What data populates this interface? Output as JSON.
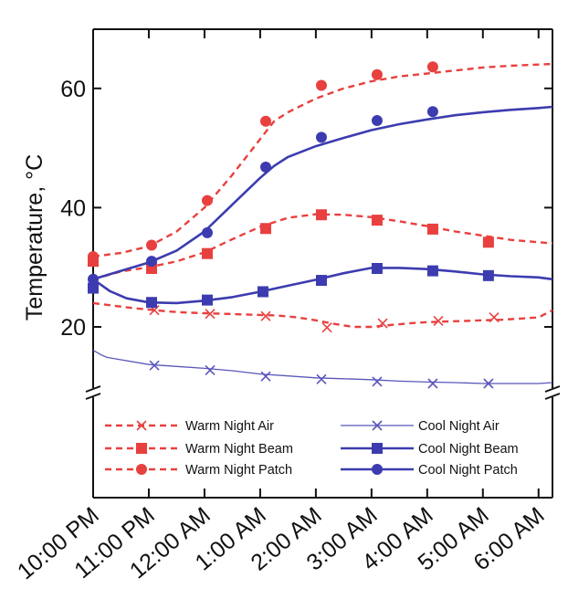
{
  "chart_data": {
    "type": "line",
    "ylabel": "Temperature, °C",
    "xlabel": "",
    "y_ticks": [
      "20",
      "40",
      "60"
    ],
    "x_ticks": [
      "10:00 PM",
      "11:00 PM",
      "12:00 AM",
      "1:00 AM",
      "2:00 AM",
      "3:00 AM",
      "4:00 AM",
      "5:00 AM",
      "6:00 AM"
    ],
    "y_axis_break": true,
    "grid": false,
    "legend_position": "bottom (inside plot, below axis break)",
    "series": [
      {
        "name": "Warm Night Air",
        "color": "#e8403f",
        "line": "dashed",
        "marker": "x",
        "x": [
          22.0,
          22.33,
          22.67,
          23.0,
          23.33,
          23.67,
          24.0,
          24.33,
          24.67,
          25.0,
          25.33,
          25.67,
          26.0,
          26.33,
          26.67,
          27.0,
          27.33,
          27.67,
          28.0,
          28.33,
          28.67,
          29.0,
          29.33,
          29.67,
          30.0,
          30.25
        ],
        "y": [
          24.0,
          23.6,
          23.2,
          22.9,
          22.6,
          22.4,
          22.3,
          22.2,
          22.1,
          22.0,
          21.9,
          21.6,
          21.1,
          20.5,
          20.0,
          20.0,
          20.3,
          20.6,
          20.8,
          20.9,
          21.0,
          21.1,
          21.2,
          21.4,
          21.6,
          22.8
        ],
        "markers": [
          [
            23.1,
            22.8
          ],
          [
            24.1,
            22.2
          ],
          [
            25.1,
            21.8
          ],
          [
            26.2,
            19.9
          ],
          [
            27.2,
            20.6
          ],
          [
            28.2,
            21.0
          ],
          [
            29.2,
            21.6
          ]
        ]
      },
      {
        "name": "Warm Night Beam",
        "color": "#e8403f",
        "line": "dashed",
        "marker": "square",
        "x": [
          22.0,
          22.5,
          23.0,
          23.5,
          24.0,
          24.5,
          25.0,
          25.5,
          26.0,
          26.5,
          27.0,
          27.5,
          28.0,
          28.5,
          29.0,
          29.5,
          30.0,
          30.25
        ],
        "y": [
          28.0,
          29.3,
          30.0,
          31.0,
          32.5,
          34.7,
          36.8,
          38.3,
          38.9,
          38.8,
          38.4,
          37.7,
          36.9,
          36.0,
          35.3,
          34.6,
          34.2,
          34.0
        ],
        "markers": [
          [
            22.0,
            31.0
          ],
          [
            23.05,
            29.8
          ],
          [
            24.05,
            32.3
          ],
          [
            25.1,
            36.5
          ],
          [
            26.1,
            38.8
          ],
          [
            27.1,
            37.9
          ],
          [
            28.1,
            36.4
          ],
          [
            29.1,
            34.2
          ]
        ]
      },
      {
        "name": "Warm Night Patch",
        "color": "#e8403f",
        "line": "dashed",
        "marker": "circle",
        "x": [
          22.0,
          22.5,
          23.0,
          23.5,
          24.0,
          24.5,
          25.0,
          25.25,
          25.5,
          26.0,
          26.5,
          27.0,
          27.5,
          28.0,
          28.5,
          29.0,
          29.5,
          30.0,
          30.25
        ],
        "y": [
          31.8,
          32.4,
          33.5,
          36.0,
          40.0,
          45.5,
          51.5,
          54.5,
          56.0,
          58.3,
          60.0,
          61.2,
          62.0,
          62.5,
          63.0,
          63.5,
          63.8,
          64.0,
          64.1
        ],
        "markers": [
          [
            22.0,
            31.8
          ],
          [
            23.05,
            33.7
          ],
          [
            24.05,
            41.2
          ],
          [
            25.1,
            54.5
          ],
          [
            26.1,
            60.5
          ],
          [
            27.1,
            62.3
          ],
          [
            28.1,
            63.6
          ]
        ]
      },
      {
        "name": "Cool Night Air",
        "color": "#5a56bb",
        "line": "thin-solid",
        "marker": "x",
        "x": [
          22.0,
          22.15,
          22.25,
          22.5,
          23.0,
          23.5,
          24.0,
          24.5,
          25.0,
          25.5,
          26.0,
          26.5,
          27.0,
          27.5,
          28.0,
          28.5,
          29.0,
          29.5,
          30.0,
          30.25
        ],
        "y": [
          17.0,
          16.0,
          15.5,
          15.0,
          14.0,
          13.6,
          13.2,
          12.7,
          12.0,
          11.6,
          11.2,
          11.0,
          10.8,
          10.5,
          10.3,
          10.2,
          10.0,
          10.0,
          10.0,
          10.2
        ],
        "markers": [
          [
            23.1,
            13.8
          ],
          [
            24.1,
            12.8
          ],
          [
            25.1,
            11.5
          ],
          [
            26.1,
            10.9
          ],
          [
            27.1,
            10.4
          ],
          [
            28.1,
            10.0
          ],
          [
            29.1,
            10.0
          ]
        ]
      },
      {
        "name": "Cool Night Beam",
        "color": "#3c3cb0",
        "line": "solid",
        "marker": "square",
        "x": [
          22.0,
          22.3,
          22.6,
          23.0,
          23.5,
          24.0,
          24.5,
          25.0,
          25.5,
          26.0,
          26.5,
          27.0,
          27.5,
          28.0,
          28.5,
          29.0,
          29.5,
          30.0,
          30.25
        ],
        "y": [
          28.0,
          26.0,
          24.8,
          24.1,
          24.0,
          24.4,
          25.0,
          25.9,
          26.9,
          27.9,
          29.0,
          29.9,
          29.9,
          29.7,
          29.3,
          28.8,
          28.5,
          28.3,
          28.0
        ],
        "markers": [
          [
            22.0,
            26.5
          ],
          [
            23.05,
            24.1
          ],
          [
            24.05,
            24.5
          ],
          [
            25.05,
            25.9
          ],
          [
            26.1,
            27.8
          ],
          [
            27.1,
            29.8
          ],
          [
            28.1,
            29.4
          ],
          [
            29.1,
            28.6
          ]
        ]
      },
      {
        "name": "Cool Night Patch",
        "color": "#3c3cb0",
        "line": "solid",
        "marker": "circle",
        "x": [
          22.0,
          22.5,
          23.0,
          23.5,
          24.0,
          24.5,
          25.0,
          25.25,
          25.5,
          26.0,
          26.5,
          27.0,
          27.5,
          28.0,
          28.5,
          29.0,
          29.5,
          30.0,
          30.25
        ],
        "y": [
          28.0,
          29.4,
          30.8,
          32.8,
          36.0,
          40.5,
          45.0,
          47.0,
          48.5,
          50.3,
          51.7,
          53.0,
          54.0,
          54.8,
          55.5,
          56.0,
          56.4,
          56.7,
          56.9
        ],
        "markers": [
          [
            22.0,
            28.0
          ],
          [
            23.05,
            31.0
          ],
          [
            24.05,
            35.8
          ],
          [
            25.1,
            46.8
          ],
          [
            26.1,
            51.8
          ],
          [
            27.1,
            54.6
          ],
          [
            28.1,
            56.1
          ]
        ]
      }
    ]
  }
}
